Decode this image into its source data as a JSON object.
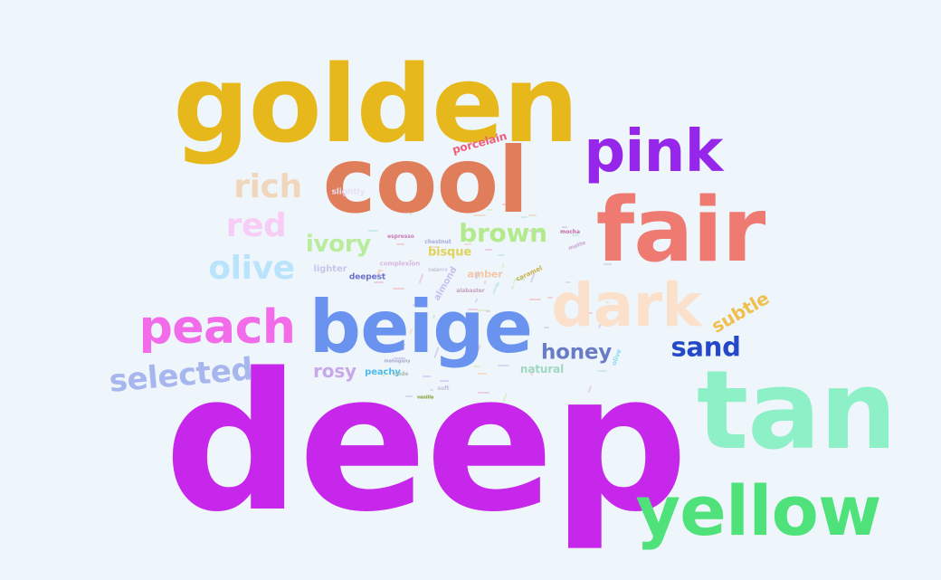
{
  "words": [
    {
      "text": "deep",
      "color": "#c727ea",
      "rotate": 0
    },
    {
      "text": "golden",
      "color": "#e6b81b",
      "rotate": 0
    },
    {
      "text": "tan",
      "color": "#8df0c6",
      "rotate": 0
    },
    {
      "text": "cool",
      "color": "#e07d5a",
      "rotate": 0
    },
    {
      "text": "fair",
      "color": "#ee7a72",
      "rotate": 0
    },
    {
      "text": "yellow",
      "color": "#4fe27a",
      "rotate": 0
    },
    {
      "text": "beige",
      "color": "#6993ee",
      "rotate": 0
    },
    {
      "text": "dark",
      "color": "#fbe0cb",
      "rotate": 0
    },
    {
      "text": "pink",
      "color": "#9526ea",
      "rotate": 0
    },
    {
      "text": "peach",
      "color": "#f26cea",
      "rotate": 0
    },
    {
      "text": "selected",
      "color": "#a8b6ee",
      "rotate": -5
    },
    {
      "text": "olive",
      "color": "#b9e4fb",
      "rotate": 0
    },
    {
      "text": "red",
      "color": "#f8cdf5",
      "rotate": 0
    },
    {
      "text": "rich",
      "color": "#f0d7bc",
      "rotate": 0
    },
    {
      "text": "brown",
      "color": "#b3ea8b",
      "rotate": 0
    },
    {
      "text": "ivory",
      "color": "#b9ec9c",
      "rotate": 0
    },
    {
      "text": "sand",
      "color": "#2448c8",
      "rotate": 0
    },
    {
      "text": "honey",
      "color": "#6a7cc6",
      "rotate": 0
    },
    {
      "text": "subtle",
      "color": "#f0bf4e",
      "rotate": -30
    },
    {
      "text": "rosy",
      "color": "#c9a8ea",
      "rotate": 0
    },
    {
      "text": "porcelain",
      "color": "#ef5d7c",
      "rotate": -15
    },
    {
      "text": "bisque",
      "color": "#e1d25a",
      "rotate": 0
    },
    {
      "text": "natural",
      "color": "#9fd8c2",
      "rotate": 0
    },
    {
      "text": "peachy",
      "color": "#4fbde9",
      "rotate": 0
    },
    {
      "text": "lighter",
      "color": "#c9c5e9",
      "rotate": 0
    },
    {
      "text": "deepest",
      "color": "#6b6fc9",
      "rotate": 0
    },
    {
      "text": "amber",
      "color": "#f3c6a5",
      "rotate": 0
    },
    {
      "text": "almond",
      "color": "#c8c0ef",
      "rotate": -60
    },
    {
      "text": "slightly",
      "color": "#e8e0f5",
      "rotate": 0
    },
    {
      "text": "complexion",
      "color": "#d8b8e0",
      "rotate": 0
    },
    {
      "text": "chestnut",
      "color": "#a8a8d8",
      "rotate": 0
    },
    {
      "text": "espresso",
      "color": "#c87ab8",
      "rotate": 0
    },
    {
      "text": "mocha",
      "color": "#c46ca8",
      "rotate": 0
    },
    {
      "text": "matte",
      "color": "#c8a8d0",
      "rotate": -20
    },
    {
      "text": "caramel",
      "color": "#c9b04a",
      "rotate": -25
    },
    {
      "text": "mahogany",
      "color": "#a9a9c9",
      "rotate": 0
    },
    {
      "text": "alabaster",
      "color": "#c9a0c0",
      "rotate": 0
    },
    {
      "text": "nude",
      "color": "#a8c0b8",
      "rotate": 0
    },
    {
      "text": "vanilla",
      "color": "#7c9c2c",
      "rotate": 0
    },
    {
      "text": "soft",
      "color": "#c0c0d8",
      "rotate": 0
    },
    {
      "text": "balance",
      "color": "#c8c8e0",
      "rotate": 0
    },
    {
      "text": "olive",
      "color": "#8fd8f0",
      "rotate": -70
    }
  ]
}
